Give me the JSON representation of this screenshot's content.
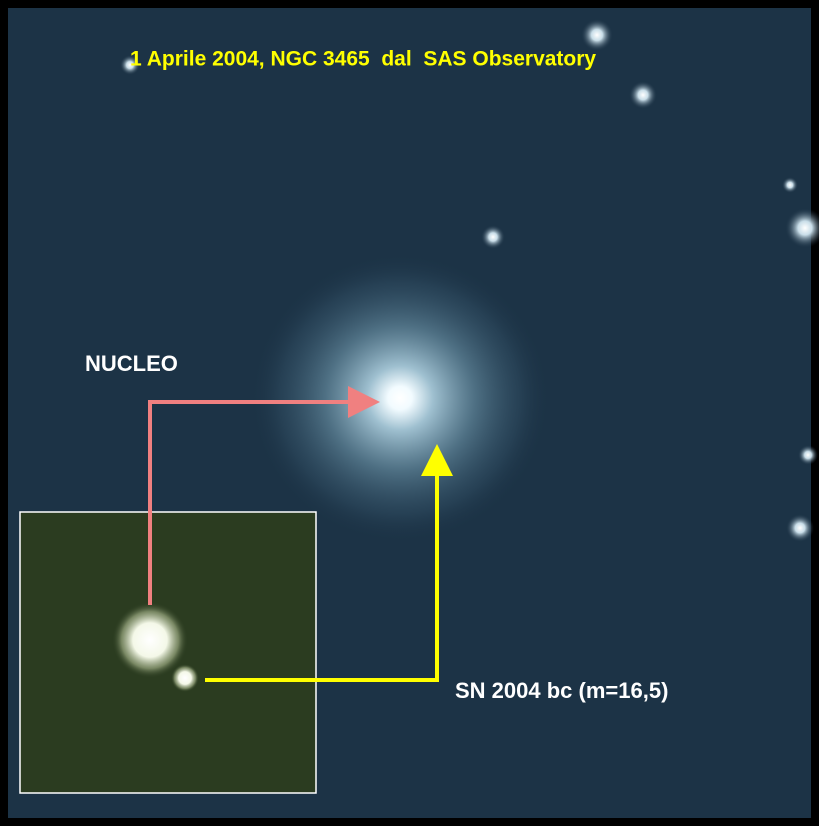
{
  "title": "1 Aprile 2004, NGC 3465  dal  SAS Observatory",
  "labels": {
    "nucleus": "NUCLEO",
    "supernova": "SN 2004 bc (m=16,5)"
  }
}
